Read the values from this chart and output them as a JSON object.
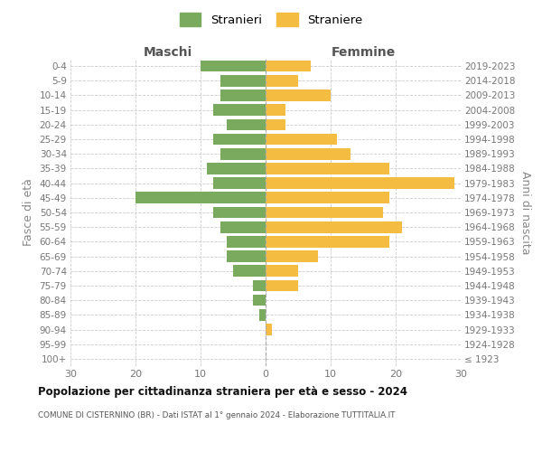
{
  "age_groups": [
    "100+",
    "95-99",
    "90-94",
    "85-89",
    "80-84",
    "75-79",
    "70-74",
    "65-69",
    "60-64",
    "55-59",
    "50-54",
    "45-49",
    "40-44",
    "35-39",
    "30-34",
    "25-29",
    "20-24",
    "15-19",
    "10-14",
    "5-9",
    "0-4"
  ],
  "birth_years": [
    "≤ 1923",
    "1924-1928",
    "1929-1933",
    "1934-1938",
    "1939-1943",
    "1944-1948",
    "1949-1953",
    "1954-1958",
    "1959-1963",
    "1964-1968",
    "1969-1973",
    "1974-1978",
    "1979-1983",
    "1984-1988",
    "1989-1993",
    "1994-1998",
    "1999-2003",
    "2004-2008",
    "2009-2013",
    "2014-2018",
    "2019-2023"
  ],
  "maschi": [
    0,
    0,
    0,
    1,
    2,
    2,
    5,
    6,
    6,
    7,
    8,
    20,
    8,
    9,
    7,
    8,
    6,
    8,
    7,
    7,
    10
  ],
  "femmine": [
    0,
    0,
    1,
    0,
    0,
    5,
    5,
    8,
    19,
    21,
    18,
    19,
    29,
    19,
    13,
    11,
    3,
    3,
    10,
    5,
    7
  ],
  "color_maschi": "#7aaa5e",
  "color_femmine": "#f5bc42",
  "title": "Popolazione per cittadinanza straniera per età e sesso - 2024",
  "subtitle": "COMUNE DI CISTERNINO (BR) - Dati ISTAT al 1° gennaio 2024 - Elaborazione TUTTITALIA.IT",
  "ylabel_left": "Fasce di età",
  "ylabel_right": "Anni di nascita",
  "label_maschi": "Maschi",
  "label_femmine": "Femmine",
  "legend_maschi": "Stranieri",
  "legend_femmine": "Straniere",
  "xlim": 30,
  "background_color": "#ffffff",
  "grid_color": "#cccccc"
}
